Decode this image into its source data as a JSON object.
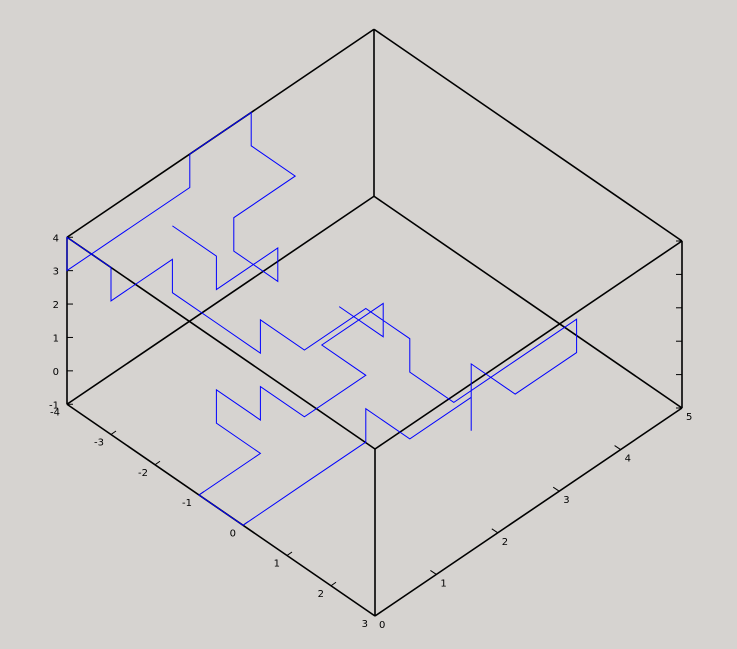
{
  "chart_data": {
    "type": "line",
    "title": "",
    "xlabel": "",
    "ylabel": "",
    "zlabel": "",
    "xlim": [
      -4,
      3
    ],
    "ylim": [
      0,
      5
    ],
    "zlim": [
      -1,
      4
    ],
    "grid": false,
    "x_ticks": [
      "-4",
      "-3",
      "-2",
      "-1",
      "0",
      "1",
      "2",
      "3"
    ],
    "y_ticks": [
      "0",
      "1",
      "2",
      "3",
      "4",
      "5"
    ],
    "z_ticks": [
      "-1",
      "0",
      "1",
      "2",
      "3",
      "4"
    ],
    "colors": {
      "background": "#d6d3d0",
      "box": "#000000",
      "series": "#0000ff"
    },
    "series": [
      {
        "points": [
          [
            -2,
            3,
            0
          ],
          [
            -1,
            3,
            0
          ],
          [
            -1,
            3,
            1
          ],
          [
            -1,
            2,
            1
          ],
          [
            0,
            2,
            1
          ],
          [
            0,
            1,
            1
          ],
          [
            -1,
            1,
            1
          ],
          [
            -1,
            1,
            0
          ],
          [
            -2,
            1,
            0
          ],
          [
            -2,
            1,
            -1
          ],
          [
            -1,
            1,
            -1
          ],
          [
            -1,
            0,
            -1
          ],
          [
            0,
            0,
            -1
          ],
          [
            0,
            1,
            -1
          ],
          [
            0,
            2,
            -1
          ],
          [
            0,
            2,
            0
          ],
          [
            1,
            2,
            0
          ],
          [
            1,
            3,
            0
          ],
          [
            1,
            3,
            -1
          ],
          [
            1,
            3,
            1
          ],
          [
            2,
            3,
            1
          ],
          [
            2,
            4,
            1
          ],
          [
            2,
            4,
            2
          ],
          [
            2,
            3,
            2
          ],
          [
            2,
            2,
            2
          ],
          [
            1,
            2,
            2
          ],
          [
            1,
            2,
            3
          ],
          [
            0,
            2,
            3
          ],
          [
            0,
            1,
            3
          ],
          [
            -1,
            1,
            3
          ],
          [
            -1,
            1,
            2
          ],
          [
            -2,
            1,
            2
          ],
          [
            -3,
            1,
            2
          ],
          [
            -3,
            1,
            3
          ],
          [
            -3,
            0,
            3
          ],
          [
            -3,
            0,
            4
          ],
          [
            -4,
            0,
            4
          ],
          [
            -4,
            0,
            3
          ],
          [
            -4,
            1,
            3
          ],
          [
            -4,
            2,
            3
          ],
          [
            -4,
            2,
            4
          ],
          [
            -4,
            3,
            4
          ],
          [
            -4,
            3,
            3
          ],
          [
            -3,
            3,
            3
          ],
          [
            -3,
            2,
            3
          ],
          [
            -3,
            2,
            2
          ],
          [
            -2,
            2,
            2
          ],
          [
            -2,
            2,
            3
          ],
          [
            -2,
            1,
            3
          ],
          [
            -2,
            1,
            4
          ],
          [
            -3,
            1,
            4
          ]
        ]
      }
    ]
  }
}
